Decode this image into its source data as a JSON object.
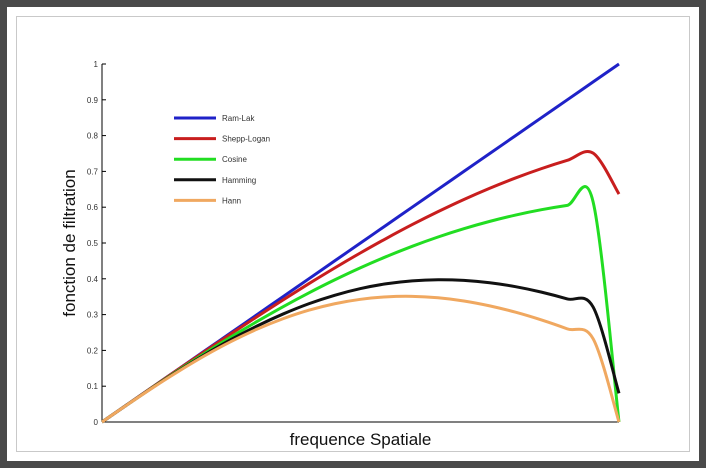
{
  "chart_data": {
    "type": "line",
    "title": "",
    "xlabel": "frequence Spatiale",
    "ylabel": "fonction de filtration",
    "xlim": [
      0,
      1
    ],
    "ylim": [
      0,
      1
    ],
    "y_ticks": [
      "0",
      "0.1",
      "0.2",
      "0.3",
      "0.4",
      "0.5",
      "0.6",
      "0.7",
      "0.8",
      "0.9",
      "1"
    ],
    "legend_position": "top-left",
    "grid": false,
    "x": [
      0,
      0.05,
      0.1,
      0.15,
      0.2,
      0.25,
      0.3,
      0.35,
      0.4,
      0.45,
      0.5,
      0.55,
      0.6,
      0.65,
      0.7,
      0.75,
      0.8,
      0.85,
      0.9,
      0.95,
      1
    ],
    "series": [
      {
        "name": "Ram-Lak",
        "color": "#1f22c8",
        "values": [
          0,
          0.05,
          0.1,
          0.15,
          0.2,
          0.25,
          0.3,
          0.35,
          0.4,
          0.45,
          0.5,
          0.55,
          0.6,
          0.65,
          0.7,
          0.75,
          0.8,
          0.85,
          0.9,
          0.95,
          1
        ]
      },
      {
        "name": "Shepp-Logan",
        "color": "#c81e1e",
        "values": [
          0,
          0.05,
          0.0998,
          0.1494,
          0.1984,
          0.2468,
          0.2944,
          0.3409,
          0.3863,
          0.4302,
          0.4724,
          0.5129,
          0.5514,
          0.5876,
          0.6216,
          0.653,
          0.6818,
          0.7078,
          0.7309,
          0.751,
          0.6366
        ]
      },
      {
        "name": "Cosine",
        "color": "#22dd22",
        "values": [
          0,
          0.0497,
          0.0988,
          0.1467,
          0.1931,
          0.2379,
          0.2808,
          0.3218,
          0.3605,
          0.3969,
          0.4308,
          0.4621,
          0.4908,
          0.5168,
          0.54,
          0.5604,
          0.5781,
          0.593,
          0.6051,
          0.6144,
          0
        ]
      },
      {
        "name": "Hamming",
        "color": "#111111",
        "values": [
          0,
          0.0495,
          0.0981,
          0.1449,
          0.1893,
          0.2306,
          0.2682,
          0.3015,
          0.3303,
          0.354,
          0.3727,
          0.3861,
          0.3943,
          0.3974,
          0.3955,
          0.389,
          0.378,
          0.3628,
          0.3437,
          0.321,
          0.08
        ]
      },
      {
        "name": "Hann",
        "color": "#f0a860",
        "values": [
          0,
          0.0494,
          0.0976,
          0.1434,
          0.1862,
          0.225,
          0.2593,
          0.2884,
          0.3122,
          0.3303,
          0.3427,
          0.3496,
          0.351,
          0.347,
          0.3381,
          0.3244,
          0.3066,
          0.285,
          0.2601,
          0.2324,
          0
        ]
      }
    ]
  }
}
